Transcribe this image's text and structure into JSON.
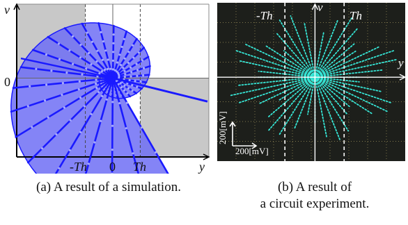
{
  "chart_data": [
    {
      "type": "scatter",
      "panel": "a",
      "title": "",
      "xlabel": "y",
      "ylabel": "v",
      "x_ticks": [
        "-Th",
        "0",
        "Th"
      ],
      "y_ticks": [
        "0"
      ],
      "threshold": 1,
      "xlim": [
        -3.5,
        3.5
      ],
      "ylim": [
        -3.2,
        3.0
      ],
      "shaded_regions": [
        "y < -Th, v > 0",
        "y > Th, v < 0"
      ],
      "spiral": {
        "a": 0.45,
        "b": 0.32,
        "turns": 1.35,
        "spokes": 36
      },
      "colors": {
        "trajectory": "#1a1aff",
        "fill": "#6f6ff5",
        "shade": "#c8c8c8",
        "dashed": "#444444"
      }
    },
    {
      "type": "scatter",
      "panel": "b",
      "title": "",
      "xlabel": "y",
      "ylabel": "v",
      "threshold_labels": [
        "-Th",
        "Th"
      ],
      "scale_labels": [
        "200[mV]",
        "200[mV]"
      ],
      "rays": 44,
      "colors": {
        "screen": "#1d1f1b",
        "trace": "#36e6d6",
        "grid": "#c9b870"
      }
    }
  ],
  "captions": {
    "a": "(a) A result of a simulation.",
    "b_line1": "(b) A result of",
    "b_line2": "a circuit experiment."
  }
}
